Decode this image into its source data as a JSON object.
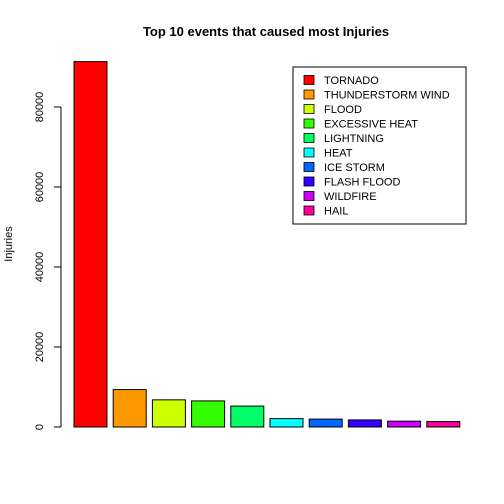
{
  "chart_data": {
    "type": "bar",
    "title": "Top 10 events that caused most Injuries",
    "xlabel": "",
    "ylabel": "Injuries",
    "ylim": [
      0,
      92000
    ],
    "yticks": [
      0,
      20000,
      40000,
      60000,
      80000
    ],
    "grid": false,
    "legend_position": "top-right",
    "categories": [
      "TORNADO",
      "THUNDERSTORM WIND",
      "FLOOD",
      "EXCESSIVE HEAT",
      "LIGHTNING",
      "HEAT",
      "ICE STORM",
      "FLASH FLOOD",
      "WILDFIRE",
      "HAIL"
    ],
    "values": [
      91346,
      9353,
      6791,
      6525,
      5230,
      2100,
      1975,
      1777,
      1456,
      1361
    ],
    "colors": [
      "#FF0000",
      "#FF9900",
      "#CCFF00",
      "#33FF00",
      "#00FF66",
      "#00FFFF",
      "#0066FF",
      "#3300FF",
      "#CC00FF",
      "#FF0099"
    ]
  }
}
